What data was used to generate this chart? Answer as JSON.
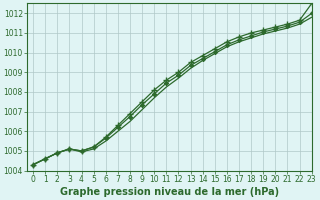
{
  "title": "Graphe pression niveau de la mer (hPa)",
  "x_ticks": [
    0,
    1,
    2,
    3,
    4,
    5,
    6,
    7,
    8,
    9,
    10,
    11,
    12,
    13,
    14,
    15,
    16,
    17,
    18,
    19,
    20,
    21,
    22,
    23
  ],
  "xlim": [
    -0.5,
    23
  ],
  "ylim": [
    1004,
    1012.5
  ],
  "y_ticks": [
    1004,
    1005,
    1006,
    1007,
    1008,
    1009,
    1010,
    1011,
    1012
  ],
  "line_plus": {
    "x": [
      0,
      1,
      2,
      3,
      4,
      5,
      6,
      7,
      8,
      9,
      10,
      11,
      12,
      13,
      14,
      15,
      16,
      17,
      18,
      19,
      20,
      21,
      22,
      23
    ],
    "y": [
      1004.3,
      1004.6,
      1004.9,
      1005.1,
      1005.0,
      1005.2,
      1005.7,
      1006.3,
      1006.9,
      1007.5,
      1008.1,
      1008.6,
      1009.0,
      1009.5,
      1009.85,
      1010.2,
      1010.55,
      1010.8,
      1011.0,
      1011.15,
      1011.3,
      1011.45,
      1011.65,
      1012.5
    ],
    "color": "#2d6a2d",
    "marker": "+"
  },
  "line_diamond": {
    "x": [
      0,
      1,
      2,
      3,
      4,
      5,
      6,
      7,
      8,
      9,
      10,
      11,
      12,
      13,
      14,
      15,
      16,
      17,
      18,
      19,
      20,
      21,
      22,
      23
    ],
    "y": [
      1004.3,
      1004.6,
      1004.9,
      1005.1,
      1005.0,
      1005.2,
      1005.65,
      1006.2,
      1006.75,
      1007.35,
      1007.9,
      1008.45,
      1008.85,
      1009.35,
      1009.7,
      1010.05,
      1010.4,
      1010.65,
      1010.85,
      1011.05,
      1011.2,
      1011.35,
      1011.55,
      1012.0
    ],
    "color": "#2d6a2d",
    "marker": "D"
  },
  "line_plain": {
    "x": [
      0,
      1,
      2,
      3,
      4,
      5,
      6,
      7,
      8,
      9,
      10,
      11,
      12,
      13,
      14,
      15,
      16,
      17,
      18,
      19,
      20,
      21,
      22,
      23
    ],
    "y": [
      1004.3,
      1004.6,
      1004.9,
      1005.1,
      1004.95,
      1005.1,
      1005.5,
      1006.0,
      1006.5,
      1007.1,
      1007.7,
      1008.25,
      1008.7,
      1009.2,
      1009.6,
      1009.95,
      1010.3,
      1010.55,
      1010.75,
      1010.95,
      1011.1,
      1011.25,
      1011.45,
      1011.8
    ],
    "color": "#2d6a2d",
    "marker": null
  },
  "bg_color": "#e0f4f4",
  "grid_color": "#b0c8c8",
  "line_color": "#2d6a2d",
  "axis_label_color": "#2d6a2d",
  "tick_label_color": "#2d6a2d",
  "border_color": "#2d6a2d",
  "title_fontsize": 7.0,
  "tick_fontsize": 5.5
}
